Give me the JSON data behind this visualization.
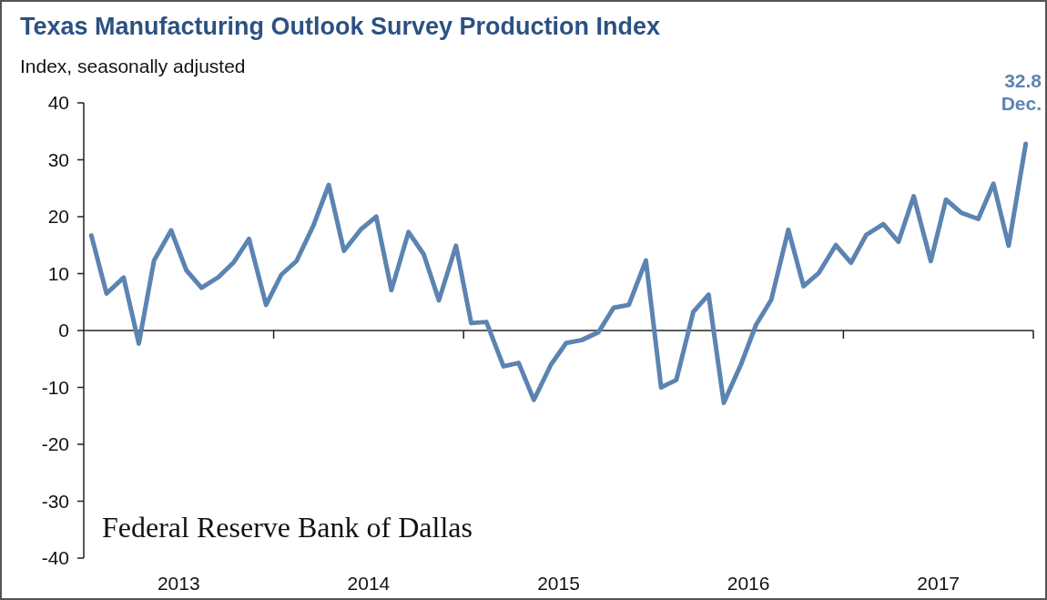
{
  "chart_data": {
    "type": "line",
    "title": "Texas Manufacturing Outlook Survey Production Index",
    "ylabel": "Index, seasonally adjusted",
    "x": [
      2013.04,
      2013.12,
      2013.21,
      2013.29,
      2013.37,
      2013.46,
      2013.54,
      2013.62,
      2013.71,
      2013.79,
      2013.87,
      2013.96,
      2014.04,
      2014.12,
      2014.21,
      2014.29,
      2014.37,
      2014.46,
      2014.54,
      2014.62,
      2014.71,
      2014.79,
      2014.87,
      2014.96,
      2015.04,
      2015.12,
      2015.21,
      2015.29,
      2015.37,
      2015.46,
      2015.54,
      2015.62,
      2015.71,
      2015.79,
      2015.87,
      2015.96,
      2016.04,
      2016.12,
      2016.21,
      2016.29,
      2016.37,
      2016.46,
      2016.54,
      2016.62,
      2016.71,
      2016.79,
      2016.87,
      2016.96,
      2017.04,
      2017.12,
      2017.21,
      2017.29,
      2017.37,
      2017.46,
      2017.54,
      2017.62,
      2017.71,
      2017.79,
      2017.87,
      2017.96
    ],
    "series": [
      {
        "color": "#5b84b1",
        "values": [
          16.7,
          6.5,
          9.3,
          -2.3,
          12.3,
          17.6,
          10.6,
          7.5,
          9.4,
          12.0,
          16.1,
          4.5,
          9.8,
          12.2,
          18.5,
          25.6,
          14.0,
          17.8,
          20.0,
          7.1,
          17.3,
          13.4,
          5.3,
          14.9,
          1.3,
          1.5,
          -6.3,
          -5.7,
          -12.2,
          -6.0,
          -2.2,
          -1.7,
          -0.3,
          4.0,
          4.5,
          12.3,
          -10.0,
          -8.7,
          3.3,
          6.3,
          -12.7,
          -6.0,
          1.0,
          5.4,
          17.7,
          7.8,
          10.1,
          15.0,
          11.9,
          16.8,
          18.7,
          15.6,
          23.6,
          12.2,
          23.0,
          20.7,
          19.6,
          25.8,
          14.9,
          32.8
        ]
      }
    ],
    "xlim": [
      2013,
      2018
    ],
    "xticks": [
      {
        "value": 2013.5,
        "label": "2013"
      },
      {
        "value": 2014,
        "label": null
      },
      {
        "value": 2014.5,
        "label": "2014"
      },
      {
        "value": 2015,
        "label": null
      },
      {
        "value": 2015.5,
        "label": "2015"
      },
      {
        "value": 2016,
        "label": null
      },
      {
        "value": 2016.5,
        "label": "2016"
      },
      {
        "value": 2017,
        "label": null
      },
      {
        "value": 2017.5,
        "label": "2017"
      },
      {
        "value": 2018,
        "label": null
      }
    ],
    "ylim": [
      -40,
      40
    ],
    "yticks": [
      -40,
      -30,
      -20,
      -10,
      0,
      10,
      20,
      30,
      40
    ],
    "annotations": [
      {
        "text": "32.8\nDec.",
        "x": 2017.96,
        "y": 32.8
      },
      "Federal Reserve Bank of Dallas"
    ],
    "marker": "none",
    "line_style": "solid"
  }
}
